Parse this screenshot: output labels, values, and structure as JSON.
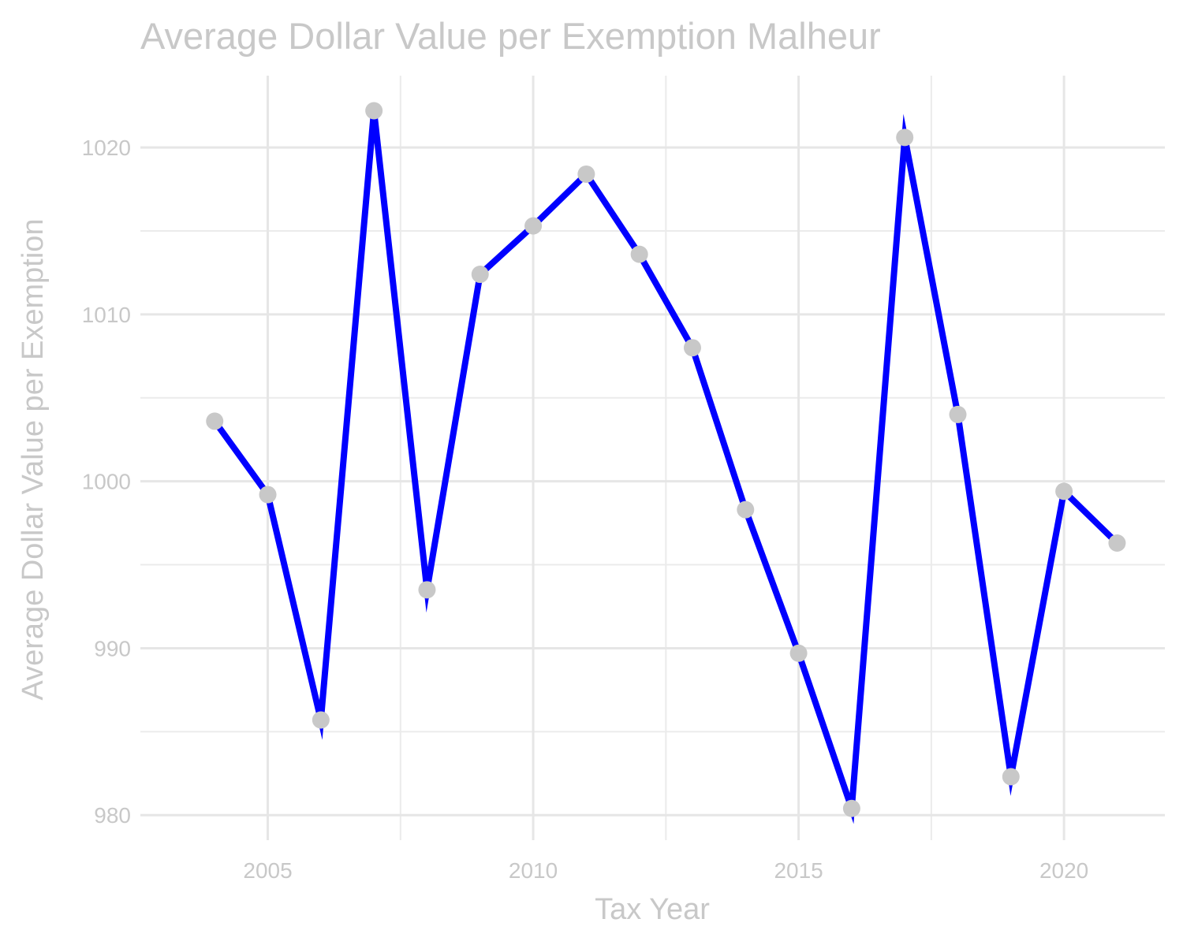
{
  "chart_data": {
    "type": "line",
    "title": "Average Dollar Value per Exemption Malheur",
    "xlabel": "Tax Year",
    "ylabel": "Average Dollar Value per Exemption",
    "x": [
      2004,
      2005,
      2006,
      2007,
      2008,
      2009,
      2010,
      2011,
      2012,
      2013,
      2014,
      2015,
      2016,
      2017,
      2018,
      2019,
      2020,
      2021
    ],
    "series": [
      {
        "values": [
          1003.6,
          999.2,
          985.7,
          1022.2,
          993.5,
          1012.4,
          1015.3,
          1018.4,
          1013.6,
          1008.0,
          998.3,
          989.7,
          980.4,
          1020.6,
          1004.0,
          982.3,
          999.4,
          996.3
        ]
      }
    ],
    "xlim": [
      2002.6,
      2021.9
    ],
    "ylim": [
      978.5,
      1024.3
    ],
    "x_ticks": [
      2005,
      2010,
      2015,
      2020
    ],
    "x_minor_ticks": [
      2007.5,
      2012.5,
      2017.5
    ],
    "y_ticks": [
      980,
      990,
      1000,
      1010,
      1020
    ],
    "y_minor_ticks": [
      985,
      995,
      1005,
      1015
    ],
    "grid": true,
    "legend": "none",
    "line_color": "#0000ff",
    "point_color": "#c8c8c8",
    "text_color": "#c8c8c8",
    "grid_color": "#e6e6e6"
  }
}
